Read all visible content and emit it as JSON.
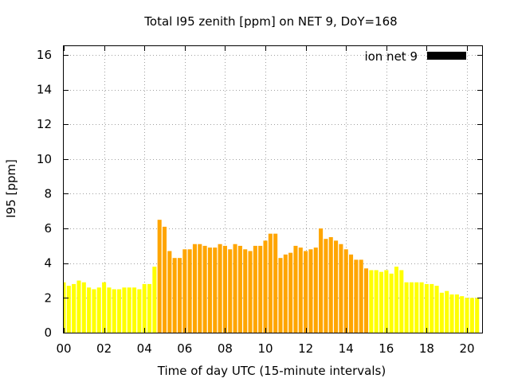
{
  "chart_data": {
    "type": "bar",
    "title": "Total I95 zenith [ppm] on NET 9, DoY=168",
    "xlabel": "Time of day UTC (15-minute intervals)",
    "ylabel": "I95 [ppm]",
    "legend": {
      "label": "ion net 9",
      "position": "top-right"
    },
    "xlim": [
      0,
      20.75
    ],
    "ylim": [
      0,
      16.5
    ],
    "grid": true,
    "xticks": [
      "00",
      "02",
      "04",
      "06",
      "08",
      "10",
      "12",
      "14",
      "16",
      "18",
      "20"
    ],
    "yticks": [
      "0",
      "2",
      "4",
      "6",
      "8",
      "10",
      "12",
      "14",
      "16"
    ],
    "bar_width_hours": 0.2,
    "colors": {
      "low": "#ffff00",
      "mid": "#ffa500",
      "legend": "#000000"
    },
    "series": [
      {
        "x": [
          0.0,
          0.25,
          0.5,
          0.75,
          1.0,
          1.25,
          1.5,
          1.75,
          2.0,
          2.25,
          2.5,
          2.75,
          3.0,
          3.25,
          3.5,
          3.75,
          4.0,
          4.25,
          4.5,
          4.75,
          5.0,
          5.25,
          5.5,
          5.75,
          6.0,
          6.25,
          6.5,
          6.75,
          7.0,
          7.25,
          7.5,
          7.75,
          8.0,
          8.25,
          8.5,
          8.75,
          9.0,
          9.25,
          9.5,
          9.75,
          10.0,
          10.25,
          10.5,
          10.75,
          11.0,
          11.25,
          11.5,
          11.75,
          12.0,
          12.25,
          12.5,
          12.75,
          13.0,
          13.25,
          13.5,
          13.75,
          14.0,
          14.25,
          14.5,
          14.75,
          15.0,
          15.25,
          15.5,
          15.75,
          16.0,
          16.25,
          16.5,
          16.75,
          17.0,
          17.25,
          17.5,
          17.75,
          18.0,
          18.25,
          18.5,
          18.75,
          19.0,
          19.25,
          19.5,
          19.75,
          20.0,
          20.25,
          20.5
        ],
        "values": [
          2.9,
          2.7,
          2.8,
          3.0,
          2.9,
          2.6,
          2.5,
          2.6,
          2.9,
          2.6,
          2.5,
          2.5,
          2.6,
          2.6,
          2.6,
          2.5,
          2.8,
          2.8,
          3.8,
          6.5,
          6.1,
          4.7,
          4.3,
          4.3,
          4.8,
          4.8,
          5.1,
          5.1,
          5.0,
          4.9,
          4.9,
          5.1,
          5.0,
          4.8,
          5.1,
          5.0,
          4.8,
          4.7,
          5.0,
          5.0,
          5.3,
          5.7,
          5.7,
          4.3,
          4.5,
          4.6,
          5.0,
          4.9,
          4.7,
          4.8,
          4.9,
          6.0,
          5.4,
          5.5,
          5.3,
          5.1,
          4.8,
          4.5,
          4.2,
          4.2,
          3.7,
          3.6,
          3.6,
          3.5,
          3.6,
          3.4,
          3.8,
          3.6,
          2.9,
          2.9,
          2.9,
          2.9,
          2.8,
          2.8,
          2.7,
          2.3,
          2.4,
          2.2,
          2.2,
          2.1,
          2.0,
          2.0,
          2.0
        ],
        "color_levels": [
          "low",
          "low",
          "low",
          "low",
          "low",
          "low",
          "low",
          "low",
          "low",
          "low",
          "low",
          "low",
          "low",
          "low",
          "low",
          "low",
          "low",
          "low",
          "low",
          "mid",
          "mid",
          "mid",
          "mid",
          "mid",
          "mid",
          "mid",
          "mid",
          "mid",
          "mid",
          "mid",
          "mid",
          "mid",
          "mid",
          "mid",
          "mid",
          "mid",
          "mid",
          "mid",
          "mid",
          "mid",
          "mid",
          "mid",
          "mid",
          "mid",
          "mid",
          "mid",
          "mid",
          "mid",
          "mid",
          "mid",
          "mid",
          "mid",
          "mid",
          "mid",
          "mid",
          "mid",
          "mid",
          "mid",
          "mid",
          "mid",
          "mid",
          "low",
          "low",
          "low",
          "low",
          "low",
          "low",
          "low",
          "low",
          "low",
          "low",
          "low",
          "low",
          "low",
          "low",
          "low",
          "low",
          "low",
          "low",
          "low",
          "low",
          "low",
          "low"
        ]
      }
    ]
  }
}
